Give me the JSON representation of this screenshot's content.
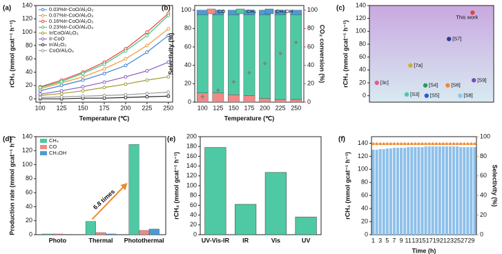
{
  "chart_data": [
    {
      "type": "line",
      "label": "(a)",
      "x_label": "Temperature (℃)",
      "y_label": "rCH₄ (mmol gcat⁻¹ h⁻¹)",
      "x": [
        100,
        125,
        150,
        175,
        200,
        225,
        250
      ],
      "xlim": [
        95,
        255
      ],
      "xticks": [
        100,
        125,
        150,
        175,
        200,
        225,
        250
      ],
      "ylim": [
        -5,
        140
      ],
      "yticks": [
        0,
        20,
        40,
        60,
        80,
        100,
        120,
        140
      ],
      "legend": "upper left",
      "series": [
        {
          "name": "0.03%Ir-CoO/Al₂O₃",
          "color": "#3b7fd4",
          "values": [
            12,
            20,
            28,
            38,
            50,
            70,
            95
          ]
        },
        {
          "name": "0.07%Ir-CoO/Al₂O₃",
          "color": "#f0962e",
          "values": [
            15,
            24,
            33,
            45,
            60,
            80,
            105
          ]
        },
        {
          "name": "0.16%Ir-CoO/Al₂O₃",
          "color": "#e8413c",
          "values": [
            18,
            28,
            40,
            55,
            75,
            100,
            128
          ]
        },
        {
          "name": "0.23%Ir-CoO/Al₂O₃",
          "color": "#3cbf7a",
          "values": [
            17,
            26,
            38,
            52,
            72,
            95,
            125
          ]
        },
        {
          "name": "Ir/CoO/Al₂O₃",
          "color": "#a09a2a",
          "values": [
            5,
            8,
            12,
            17,
            22,
            28,
            33
          ]
        },
        {
          "name": "Ir-CoO",
          "color": "#8a5cc8",
          "values": [
            7,
            12,
            18,
            25,
            33,
            42,
            55
          ]
        },
        {
          "name": "Ir/Al₂O₃",
          "color": "#222222",
          "values": [
            0,
            0,
            1,
            1,
            2,
            3,
            4
          ]
        },
        {
          "name": "CoO/Al₂O₃",
          "color": "#9a9a9a",
          "values": [
            2,
            3,
            4,
            5,
            6,
            8,
            10
          ]
        }
      ]
    },
    {
      "type": "stacked_bar",
      "label": "(b)",
      "x_label": "Temperature (℃)",
      "y_label": "Selectivity (%)",
      "y2_label": "CO₂ conversion (%)",
      "categories": [
        100,
        125,
        150,
        175,
        200,
        225,
        250
      ],
      "ylim": [
        0,
        105
      ],
      "yticks": [
        0,
        20,
        40,
        60,
        80,
        100
      ],
      "y2lim": [
        0,
        105
      ],
      "y2ticks": [
        0,
        20,
        40,
        60,
        80,
        100
      ],
      "series": [
        {
          "name": "CO",
          "color": "#f08a86",
          "values": [
            10,
            10,
            8,
            7,
            4,
            3,
            3
          ]
        },
        {
          "name": "CH₄",
          "color": "#4ec9a4",
          "values": [
            85,
            85,
            87,
            88,
            91,
            92,
            92
          ]
        },
        {
          "name": "CH₃OH",
          "color": "#4b9bd6",
          "values": [
            5,
            5,
            5,
            5,
            5,
            5,
            5
          ]
        }
      ],
      "conversion": {
        "axis": "y2",
        "color": "#7a8a7a",
        "values": [
          6,
          13,
          22,
          32,
          42,
          53,
          65
        ]
      }
    },
    {
      "type": "scatter",
      "label": "(c)",
      "y_label": "rCH₄ (mmol gcat⁻¹ h⁻¹)",
      "xlim": [
        0,
        10
      ],
      "ylim": [
        -10,
        140
      ],
      "yticks": [
        0,
        20,
        40,
        60,
        80,
        100,
        120,
        140
      ],
      "point_labels": [
        "This work",
        "[S7]",
        "[7a]",
        "[3c]",
        "[S4]",
        "[S6]",
        "[S9]",
        "[S3]",
        "[S5]",
        "[S8]"
      ],
      "x": [
        8.3,
        6.4,
        3.3,
        0.6,
        4.5,
        6.3,
        8.4,
        3.0,
        4.6,
        7.3
      ],
      "values": [
        129,
        88,
        47,
        20,
        16,
        16,
        24,
        2,
        0,
        0
      ],
      "colors": [
        "#e8413c",
        "#2a3f8a",
        "#c8b22a",
        "#e85a8a",
        "#2a9a5a",
        "#f08a2e",
        "#7a4ab8",
        "#4ec9a4",
        "#2a5ad4",
        "#8ac8e8"
      ]
    },
    {
      "type": "grouped_bar",
      "label": "(d)",
      "y_label": "Production rate (mmol gcat⁻¹ h⁻¹)",
      "annotation": "6.8 times",
      "categories": [
        "Photo",
        "Thermal",
        "Photothermal"
      ],
      "ylim": [
        0,
        140
      ],
      "yticks": [
        0,
        20,
        40,
        60,
        80,
        100,
        120,
        140
      ],
      "series": [
        {
          "name": "CH₄",
          "color": "#4ec9a4",
          "values": [
            1,
            19,
            129
          ]
        },
        {
          "name": "CO",
          "color": "#f08a86",
          "values": [
            1,
            3,
            6
          ]
        },
        {
          "name": "CH₃OH",
          "color": "#4b9bd6",
          "values": [
            0.5,
            1,
            8
          ]
        }
      ]
    },
    {
      "type": "bar",
      "label": "(e)",
      "y_label": "rCH₄ (mmol gcat⁻¹ h⁻¹)",
      "color": "#4ec9a4",
      "categories": [
        "UV-Vis-IR",
        "IR",
        "Vis",
        "UV"
      ],
      "values": [
        178,
        62,
        127,
        36
      ],
      "ylim": [
        0,
        200
      ],
      "yticks": [
        0,
        20,
        40,
        60,
        80,
        100,
        120,
        140,
        160,
        180,
        200
      ]
    },
    {
      "type": "bar_line",
      "label": "(f)",
      "x_label": "Time (h)",
      "y_label": "rCH₄ (mmol gcat⁻¹ h⁻¹)",
      "y2_label": "Selectivity (%)",
      "color": "#8ec0ea",
      "line_color": "#f08a2e",
      "categories": [
        1,
        null,
        3,
        null,
        5,
        null,
        7,
        null,
        9,
        null,
        11,
        null,
        13,
        null,
        15,
        null,
        17,
        null,
        19,
        null,
        21,
        null,
        23,
        null,
        25,
        null,
        27,
        null,
        29,
        null
      ],
      "values": [
        130,
        130,
        131,
        131,
        132,
        132,
        133,
        133,
        133,
        133,
        134,
        134,
        134,
        134,
        134,
        135,
        135,
        135,
        135,
        135,
        135,
        135,
        135,
        135,
        135,
        134,
        134,
        134,
        134,
        134
      ],
      "line_values": [
        93,
        93,
        93,
        93,
        93,
        93,
        93,
        93,
        93,
        93,
        93,
        93,
        93,
        93,
        93,
        93,
        93,
        93,
        93,
        93,
        93,
        93,
        93,
        93,
        93,
        93,
        93,
        93,
        93,
        93
      ],
      "ylim": [
        0,
        150
      ],
      "yticks": [
        0,
        20,
        40,
        60,
        80,
        100,
        120,
        140
      ],
      "y2lim": [
        0,
        100
      ],
      "y2ticks": [
        0,
        20,
        40,
        60,
        80,
        100
      ]
    }
  ]
}
